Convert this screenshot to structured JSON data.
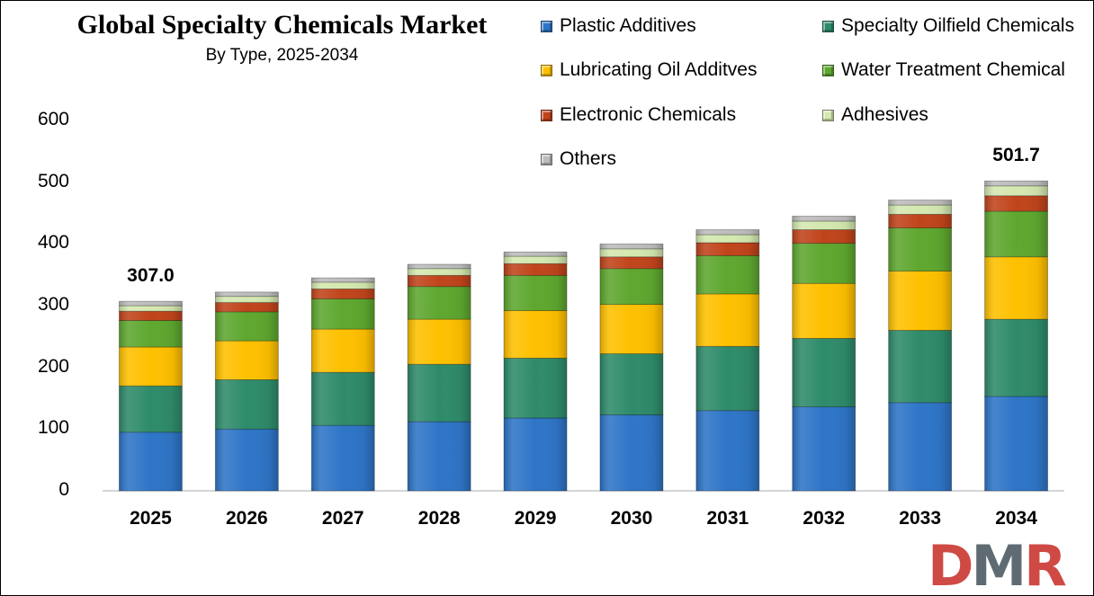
{
  "chart_data": {
    "type": "bar",
    "stacked": true,
    "title": "Global Specialty Chemicals Market",
    "subtitle": "By Type, 2025-2034",
    "categories": [
      "2025",
      "2026",
      "2027",
      "2028",
      "2029",
      "2030",
      "2031",
      "2032",
      "2033",
      "2034"
    ],
    "series": [
      {
        "name": "Plastic Additives",
        "color": "#2e75c7",
        "values": [
          95,
          100,
          106,
          112,
          118,
          123,
          130,
          136,
          143,
          153
        ]
      },
      {
        "name": "Specialty Oilfield Chemicals",
        "color": "#2e8b6a",
        "values": [
          75,
          80,
          86,
          93,
          97,
          99,
          104,
          111,
          117,
          125
        ]
      },
      {
        "name": "Lubricating Oil Additves",
        "color": "#ffc000",
        "values": [
          63,
          63,
          70,
          73,
          77,
          80,
          85,
          89,
          96,
          101
        ]
      },
      {
        "name": "Water Treatment Chemical",
        "color": "#5ea72f",
        "values": [
          43,
          47,
          49,
          53,
          57,
          58,
          62,
          65,
          70,
          74
        ]
      },
      {
        "name": "Electronic Chemicals",
        "color": "#c0441b",
        "values": [
          15,
          15,
          16,
          18,
          19,
          19,
          21,
          22,
          22,
          25
        ]
      },
      {
        "name": "Adhesives",
        "color": "#d4e8b0",
        "values": [
          9,
          10,
          11,
          11,
          12,
          13,
          13,
          14,
          15,
          16
        ]
      },
      {
        "name": "Others",
        "color": "#bdbdbd",
        "values": [
          7,
          7,
          7,
          7,
          7,
          8,
          8,
          8,
          8,
          8
        ]
      }
    ],
    "totals_labels": [
      {
        "category": "2025",
        "text": "307.0"
      },
      {
        "category": "2034",
        "text": "501.7"
      }
    ],
    "y_ticks": [
      "0",
      "100",
      "200",
      "300",
      "400",
      "500",
      "600"
    ],
    "ylim": [
      0,
      600
    ],
    "xlabel": "",
    "ylabel": "",
    "grid": false,
    "legend_position": "top-right"
  },
  "logo": {
    "letters": "DMR"
  }
}
